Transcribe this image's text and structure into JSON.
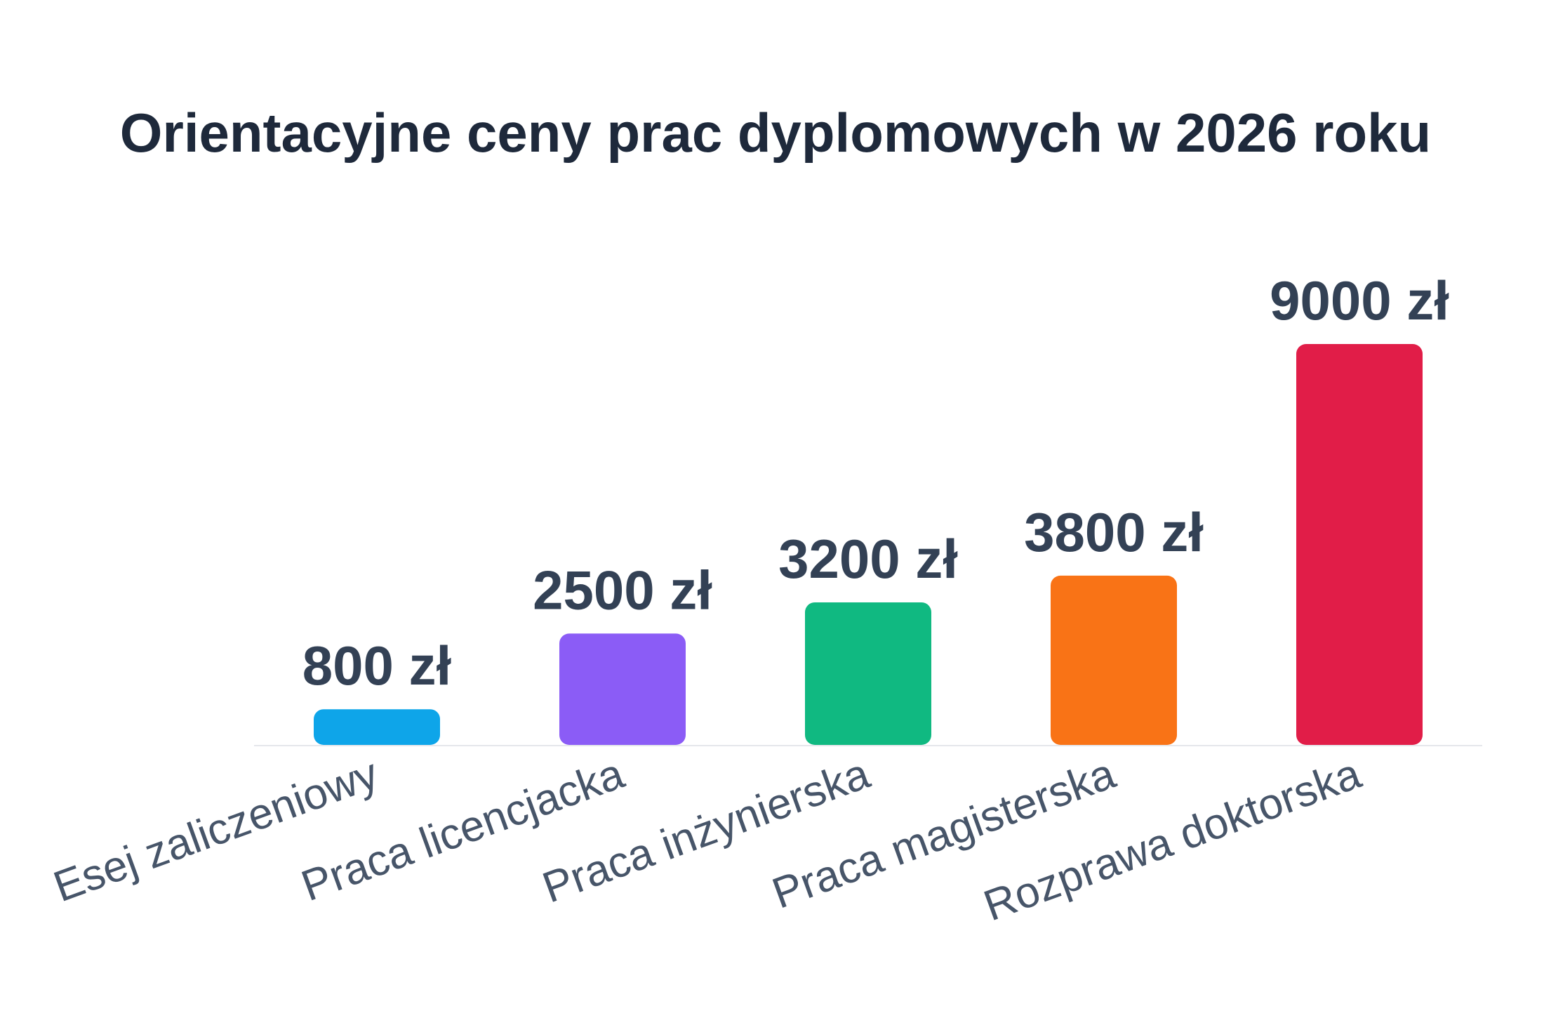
{
  "chart_data": {
    "type": "bar",
    "title": "Orientacyjne ceny prac dyplomowych w 2026 roku",
    "categories": [
      "Esej zaliczeniowy",
      "Praca licencjacka",
      "Praca inżynierska",
      "Praca magisterska",
      "Rozprawa doktorska"
    ],
    "values": [
      800,
      2500,
      3200,
      3800,
      9000
    ],
    "data_labels": [
      "800 zł",
      "2500 zł",
      "3200 zł",
      "3800 zł",
      "9000 zł"
    ],
    "colors": [
      "#0ea5e9",
      "#8b5cf6",
      "#10b981",
      "#f97316",
      "#e11d48"
    ],
    "baseline_color": "#e5e7eb",
    "xlabel": "",
    "ylabel": "",
    "ylim": [
      0,
      9000
    ],
    "grid": false,
    "legend": "none"
  }
}
